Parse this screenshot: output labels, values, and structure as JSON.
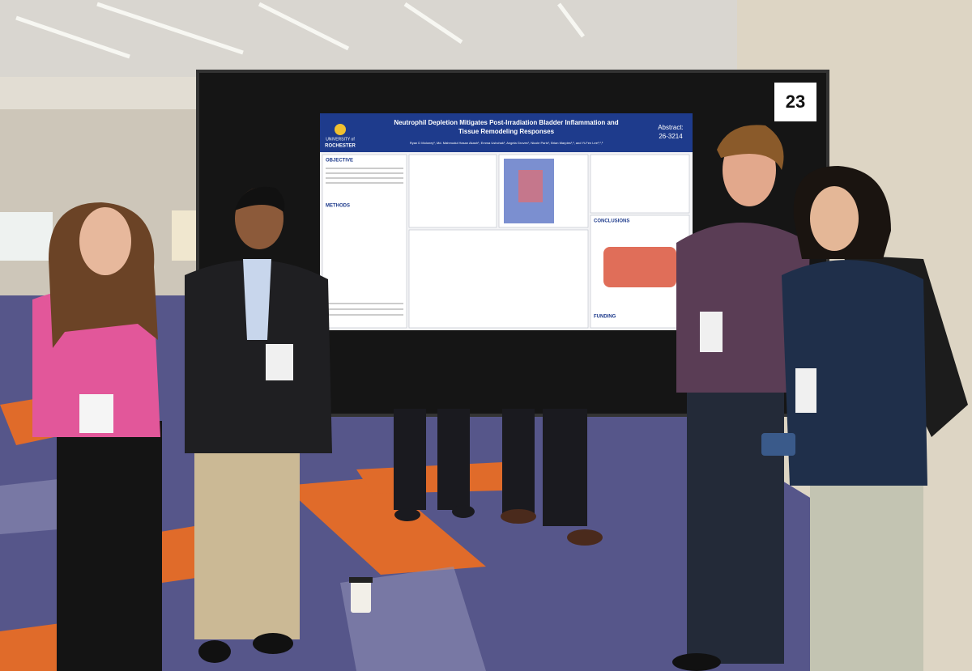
{
  "board": {
    "number": "23"
  },
  "poster": {
    "institution_lines": [
      "UNIVERSITY of",
      "ROCHESTER"
    ],
    "title_lines": [
      "Neutrophil Depletion Mitigates Post-Irradiation Bladder Inflammation and",
      "Tissue Remodeling Responses"
    ],
    "abstract_lines": [
      "Abstract:",
      "26-3214"
    ],
    "authors": "Ryan D Moloney¹, Md. Mahmudul Hasan Akash¹, Emma Ushchak¹, Angela Groves¹, Nicole Paris¹, Brian Marples¹,², and Yi-Fen Lee¹,²,³",
    "sections": [
      "OBJECTIVE",
      "METHODS",
      "CONCLUSIONS",
      "FUNDING"
    ]
  }
}
